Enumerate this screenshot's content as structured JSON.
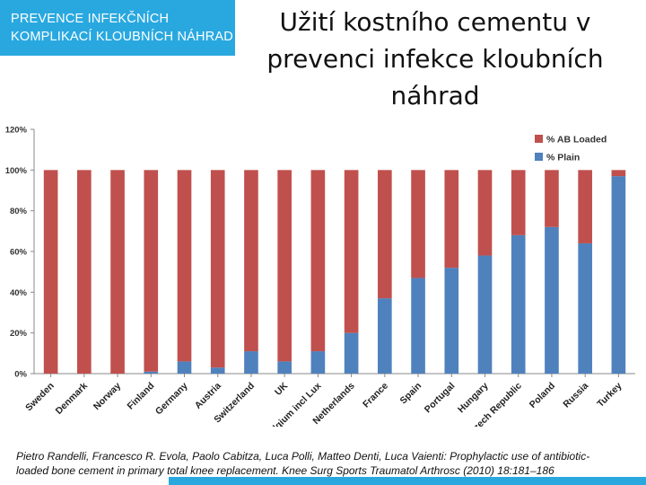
{
  "header": {
    "badge_line1": "PREVENCE INFEKČNÍCH",
    "badge_line2": "KOMPLIKACÍ KLOUBNÍCH NÁHRAD",
    "title_line1": "Užití kostního cementu v",
    "title_line2": "prevenci infekce kloubních",
    "title_line3": "náhrad"
  },
  "colors": {
    "accent": "#29a8e0",
    "ab_loaded": "#c0504d",
    "plain": "#4f81bd"
  },
  "chart_data": {
    "type": "bar",
    "stacked": true,
    "categories": [
      "Sweden",
      "Denmark",
      "Norway",
      "Finland",
      "Germany",
      "Austria",
      "Switzerland",
      "UK",
      "Belgium incl Lux",
      "Netherlands",
      "France",
      "Spain",
      "Portugal",
      "Hungary",
      "Czech Republic",
      "Poland",
      "Russia",
      "Turkey"
    ],
    "series": [
      {
        "name": "% Plain",
        "values": [
          0,
          0,
          0,
          1,
          6,
          3,
          11,
          6,
          11,
          20,
          37,
          47,
          52,
          58,
          68,
          72,
          64,
          97
        ]
      },
      {
        "name": "% AB Loaded",
        "values": [
          100,
          100,
          100,
          99,
          94,
          97,
          89,
          94,
          89,
          80,
          63,
          53,
          48,
          42,
          32,
          28,
          36,
          3
        ]
      }
    ],
    "legend_order": [
      "% AB Loaded",
      "% Plain"
    ],
    "yticks": [
      "0%",
      "20%",
      "40%",
      "60%",
      "80%",
      "100%",
      "120%"
    ],
    "ylim": [
      0,
      120
    ],
    "legend_position": "top-right",
    "grid": false
  },
  "footer": {
    "line1": "Pietro Randelli,  Francesco R. Evola, Paolo Cabitza, Luca Polli,  Matteo Denti,  Luca Vaienti: Prophylactic use of antibiotic-",
    "line2": "loaded bone cement in primary total knee replacement. Knee Surg Sports Traumatol Arthrosc (2010) 18:181–186"
  }
}
